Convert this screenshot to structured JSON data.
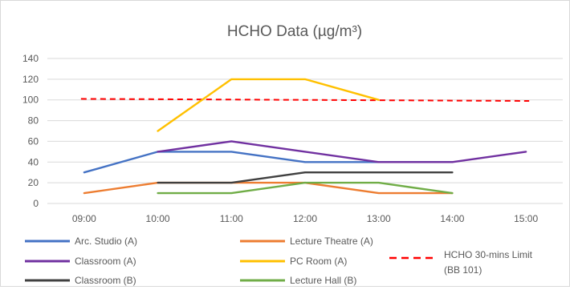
{
  "chart_data": {
    "type": "line",
    "title": "HCHO Data (µg/m³)",
    "xlabel": "",
    "ylabel": "",
    "categories": [
      "09:00",
      "10:00",
      "11:00",
      "12:00",
      "13:00",
      "14:00",
      "15:00"
    ],
    "ylim": [
      0,
      140
    ],
    "yticks": [
      0,
      20,
      40,
      60,
      80,
      100,
      120,
      140
    ],
    "grid": true,
    "legend_position": "bottom",
    "series": [
      {
        "name": "Arc. Studio (A)",
        "color": "#4472C4",
        "values": [
          30,
          50,
          50,
          40,
          40,
          40,
          null
        ]
      },
      {
        "name": "Lecture Theatre (A)",
        "color": "#ED7D31",
        "values": [
          10,
          20,
          20,
          20,
          10,
          10,
          null
        ]
      },
      {
        "name": "Classroom (A)",
        "color": "#7030A0",
        "values": [
          null,
          50,
          60,
          50,
          40,
          40,
          50
        ]
      },
      {
        "name": "PC Room (A)",
        "color": "#FFC000",
        "values": [
          null,
          70,
          120,
          120,
          100,
          null,
          null
        ]
      },
      {
        "name": "Classroom (B)",
        "color": "#404040",
        "values": [
          null,
          20,
          20,
          30,
          30,
          30,
          null
        ]
      },
      {
        "name": "Lecture Hall (B)",
        "color": "#70AD47",
        "values": [
          null,
          10,
          10,
          20,
          20,
          10,
          null
        ]
      }
    ],
    "limit_line": {
      "name_line1": "HCHO 30-mins Limit",
      "name_line2": "(BB 101)",
      "color": "#FF0000",
      "start_value": 101,
      "end_value": 99
    }
  }
}
